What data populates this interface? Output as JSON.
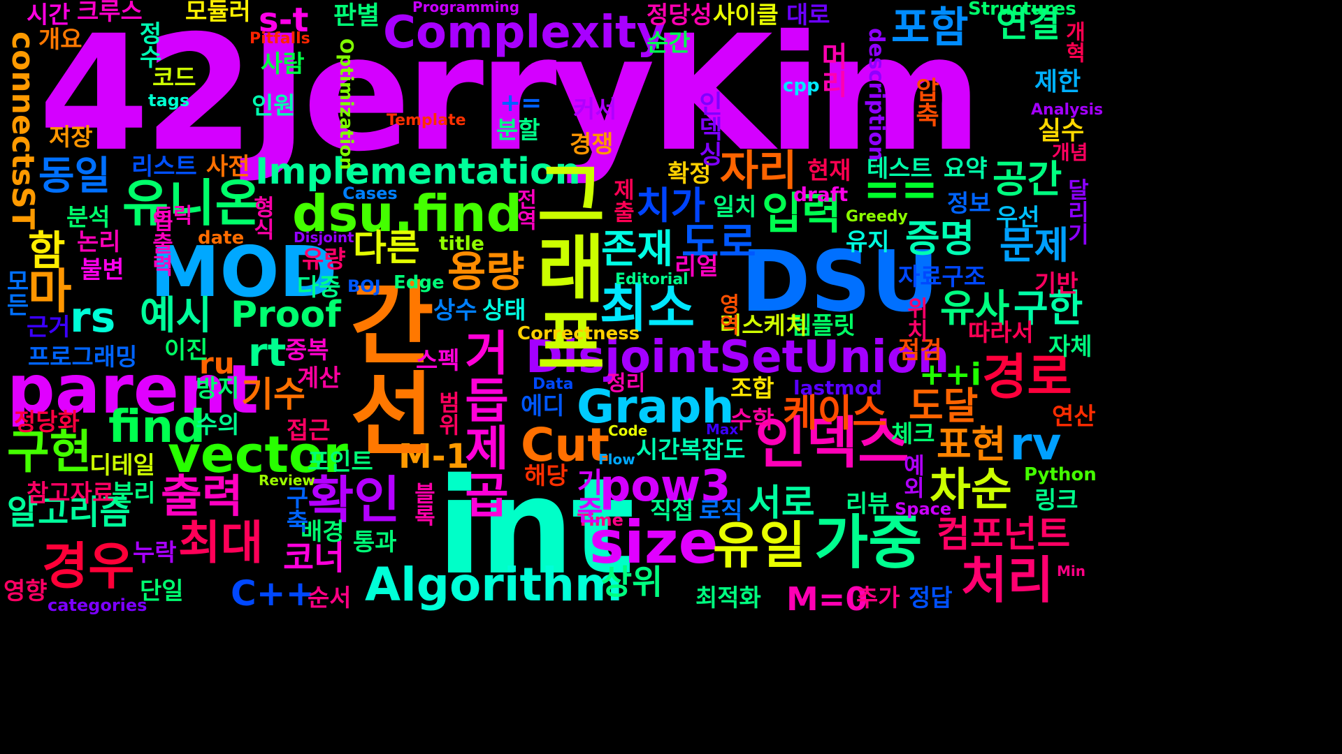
{
  "canvas": {
    "background": "#000000"
  },
  "words": [
    {
      "text": "42JerryKim",
      "color": "#d400ff"
    },
    {
      "text": "int",
      "color": "#00ffc8"
    },
    {
      "text": "DSU",
      "color": "#0070ff"
    },
    {
      "text": "MOD",
      "color": "#00a8ff"
    },
    {
      "text": "parent",
      "color": "#e000ff"
    },
    {
      "text": "Complexity",
      "color": "#a800ff"
    },
    {
      "text": "dsu.find",
      "color": "#44ff00"
    },
    {
      "text": "DisjointSetUnion",
      "color": "#a400ff"
    },
    {
      "text": "Implementation",
      "color": "#00ff9a"
    },
    {
      "text": "Algorithm",
      "color": "#00ffd8"
    },
    {
      "text": "Graph",
      "color": "#00ccff"
    },
    {
      "text": "size",
      "color": "#e000ff"
    },
    {
      "text": "vector",
      "color": "#28ff00"
    },
    {
      "text": "find",
      "color": "#00ff50"
    },
    {
      "text": "pow3",
      "color": "#d400ff"
    },
    {
      "text": "Cut",
      "color": "#ff7000"
    },
    {
      "text": "Proof",
      "color": "#00ff70"
    },
    {
      "text": "rs",
      "color": "#00ffd8"
    },
    {
      "text": "rt",
      "color": "#00ff90"
    },
    {
      "text": "rv",
      "color": "#00a0ff"
    },
    {
      "text": "C++",
      "color": "#0048ff"
    },
    {
      "text": "M-1",
      "color": "#ff9a00"
    },
    {
      "text": "M=0",
      "color": "#ff00b4"
    },
    {
      "text": "s-t",
      "color": "#ff00e8"
    },
    {
      "text": "ru",
      "color": "#ff6400"
    },
    {
      "text": "==",
      "color": "#00ff2c"
    },
    {
      "text": "+=",
      "color": "#0060ff"
    },
    {
      "text": "++i",
      "color": "#20ff00"
    },
    {
      "text": "간선",
      "color": "#ff7800"
    },
    {
      "text": "그래프",
      "color": "#ccff00"
    },
    {
      "text": "가중치",
      "color": "#ff7800"
    },
    {
      "text": "유니온",
      "color": "#00ff6a"
    },
    {
      "text": "용량",
      "color": "#ff8c00"
    },
    {
      "text": "확인",
      "color": "#b400ff"
    },
    {
      "text": "출력",
      "color": "#ff00c0"
    },
    {
      "text": "경우",
      "color": "#ff0038"
    },
    {
      "text": "구현",
      "color": "#44ff00"
    },
    {
      "text": "최소",
      "color": "#00e8ff"
    },
    {
      "text": "포함",
      "color": "#008cff"
    },
    {
      "text": "연결",
      "color": "#00ff7c"
    },
    {
      "text": "자리",
      "color": "#ff6400"
    },
    {
      "text": "입력",
      "color": "#00ff50"
    },
    {
      "text": "도로",
      "color": "#0058ff"
    },
    {
      "text": "존재",
      "color": "#00ffe4"
    },
    {
      "text": "치가",
      "color": "#0044ff"
    },
    {
      "text": "다른",
      "color": "#e4ff00"
    },
    {
      "text": "예시",
      "color": "#00ff9c"
    },
    {
      "text": "최대",
      "color": "#ff0058"
    },
    {
      "text": "유일",
      "color": "#e8ff00"
    },
    {
      "text": "가중",
      "color": "#00ff90"
    },
    {
      "text": "처리",
      "color": "#ff0070"
    },
    {
      "text": "인덱스",
      "color": "#ff00b8"
    },
    {
      "text": "유사",
      "color": "#00ff80"
    },
    {
      "text": "구한",
      "color": "#00ffa8"
    },
    {
      "text": "경로",
      "color": "#ff003c"
    },
    {
      "text": "공간",
      "color": "#00ff80"
    },
    {
      "text": "증명",
      "color": "#00ffb4"
    },
    {
      "text": "문제",
      "color": "#00a0ff"
    },
    {
      "text": "차순",
      "color": "#ccff00"
    },
    {
      "text": "표현",
      "color": "#ff8400"
    },
    {
      "text": "도달",
      "color": "#ff6400"
    },
    {
      "text": "케이스",
      "color": "#ff4c00"
    },
    {
      "text": "서로",
      "color": "#00ffa0"
    },
    {
      "text": "상위",
      "color": "#00ff80"
    },
    {
      "text": "컴포넌트",
      "color": "#ff0064"
    },
    {
      "text": "동일",
      "color": "#0070ff"
    },
    {
      "text": "알고리즘",
      "color": "#00ff9c"
    },
    {
      "text": "기수",
      "color": "#ff7000"
    },
    {
      "text": "코너",
      "color": "#ff00dc"
    },
    {
      "text": "마",
      "color": "#ff9600"
    },
    {
      "text": "함",
      "color": "#ffee00"
    },
    {
      "text": "connectsST",
      "color": "#ff9a00"
    },
    {
      "text": "거듭제곱",
      "color": "#ff00d8"
    },
    {
      "text": "테스트",
      "color": "#00ffa8"
    },
    {
      "text": "요약",
      "color": "#00ffa8"
    },
    {
      "text": "자료구조",
      "color": "#0048ff"
    },
    {
      "text": "템플릿",
      "color": "#00ff64"
    },
    {
      "text": "러스케치",
      "color": "#d0ff00"
    },
    {
      "text": "Correctness",
      "color": "#ffd000"
    },
    {
      "text": "Editorial",
      "color": "#00ff8c"
    },
    {
      "text": "Optimization",
      "color": "#80ff00"
    },
    {
      "text": "description",
      "color": "#9000ff"
    },
    {
      "text": "Programming",
      "color": "#c800ff"
    },
    {
      "text": "Structures",
      "color": "#00ff6c"
    },
    {
      "text": "Pitfalls",
      "color": "#ff2400"
    },
    {
      "text": "Template",
      "color": "#ff3000"
    },
    {
      "text": "Analysis",
      "color": "#a400ff"
    },
    {
      "text": "tags",
      "color": "#00ffd0"
    },
    {
      "text": "cpp",
      "color": "#00e8ff"
    },
    {
      "text": "Cases",
      "color": "#0080ff"
    },
    {
      "text": "draft",
      "color": "#ff00e8"
    },
    {
      "text": "Greedy",
      "color": "#8cff00"
    },
    {
      "text": "Disjoint",
      "color": "#9400ff"
    },
    {
      "text": "date",
      "color": "#ff6c00"
    },
    {
      "text": "title",
      "color": "#90ff00"
    },
    {
      "text": "BOJ",
      "color": "#0058ff"
    },
    {
      "text": "Edge",
      "color": "#00ff78"
    },
    {
      "text": "Data",
      "color": "#0048ff"
    },
    {
      "text": "lastmod",
      "color": "#5800ff"
    },
    {
      "text": "Code",
      "color": "#e8ff00"
    },
    {
      "text": "Max",
      "color": "#3c00ff"
    },
    {
      "text": "Flow",
      "color": "#00a8ff"
    },
    {
      "text": "Review",
      "color": "#9cff00"
    },
    {
      "text": "Time",
      "color": "#ff0084"
    },
    {
      "text": "Space",
      "color": "#cc00ff"
    },
    {
      "text": "Python",
      "color": "#44ff00"
    },
    {
      "text": "Min",
      "color": "#ff0084"
    },
    {
      "text": "categories",
      "color": "#7c00ff"
    },
    {
      "text": "시간",
      "color": "#ff00e0"
    },
    {
      "text": "크루스",
      "color": "#ff00c8"
    },
    {
      "text": "모듈러",
      "color": "#fff000"
    },
    {
      "text": "판별",
      "color": "#00ff78"
    },
    {
      "text": "정당성",
      "color": "#ff00b0"
    },
    {
      "text": "사이클",
      "color": "#e8ff00"
    },
    {
      "text": "대로",
      "color": "#6c00ff"
    },
    {
      "text": "개요",
      "color": "#ff7800"
    },
    {
      "text": "정수",
      "color": "#00ffb4"
    },
    {
      "text": "사람",
      "color": "#00ff44"
    },
    {
      "text": "순간",
      "color": "#00ff50"
    },
    {
      "text": "코드",
      "color": "#ccff00"
    },
    {
      "text": "인원",
      "color": "#00ffb0"
    },
    {
      "text": "제한",
      "color": "#00b0ff"
    },
    {
      "text": "실수",
      "color": "#ffd800"
    },
    {
      "text": "개념",
      "color": "#ff0060"
    },
    {
      "text": "저장",
      "color": "#ff9600"
    },
    {
      "text": "커서",
      "color": "#b000ff"
    },
    {
      "text": "분할",
      "color": "#00ff88"
    },
    {
      "text": "경쟁",
      "color": "#ff9600"
    },
    {
      "text": "리스트",
      "color": "#0050ff"
    },
    {
      "text": "사전",
      "color": "#ff7000"
    },
    {
      "text": "확정",
      "color": "#ffd000"
    },
    {
      "text": "현재",
      "color": "#ff0050"
    },
    {
      "text": "정보",
      "color": "#0064ff"
    },
    {
      "text": "우선",
      "color": "#00c0ff"
    },
    {
      "text": "분석",
      "color": "#00ff6c"
    },
    {
      "text": "트릭",
      "color": "#ff00c0"
    },
    {
      "text": "일치",
      "color": "#00ff7c"
    },
    {
      "text": "유지",
      "color": "#00ffe0"
    },
    {
      "text": "논리",
      "color": "#ff00b8"
    },
    {
      "text": "불변",
      "color": "#ff00ec"
    },
    {
      "text": "유량",
      "color": "#ff0068"
    },
    {
      "text": "리얼",
      "color": "#ff00c0"
    },
    {
      "text": "기반",
      "color": "#ff0060"
    },
    {
      "text": "다중",
      "color": "#00ff8c"
    },
    {
      "text": "상수",
      "color": "#0080ff"
    },
    {
      "text": "상태",
      "color": "#00ffe0"
    },
    {
      "text": "근거",
      "color": "#3c00ff"
    },
    {
      "text": "따라서",
      "color": "#ff0054"
    },
    {
      "text": "자체",
      "color": "#00ff80"
    },
    {
      "text": "프로그래밍",
      "color": "#0064ff"
    },
    {
      "text": "이진",
      "color": "#00ff64"
    },
    {
      "text": "중복",
      "color": "#ff00cc"
    },
    {
      "text": "점검",
      "color": "#ff4c00"
    },
    {
      "text": "계산",
      "color": "#ff00a0"
    },
    {
      "text": "스펙",
      "color": "#ff00d8"
    },
    {
      "text": "방지",
      "color": "#00ff70"
    },
    {
      "text": "정리",
      "color": "#ff00b0"
    },
    {
      "text": "조합",
      "color": "#ffe400"
    },
    {
      "text": "정당화",
      "color": "#ff0040"
    },
    {
      "text": "수의",
      "color": "#00ff90"
    },
    {
      "text": "에디",
      "color": "#0058ff"
    },
    {
      "text": "수학",
      "color": "#ff00a0"
    },
    {
      "text": "연산",
      "color": "#ff2c00"
    },
    {
      "text": "접근",
      "color": "#ff0064"
    },
    {
      "text": "체크",
      "color": "#00ff70"
    },
    {
      "text": "시간복잡도",
      "color": "#00ffb4"
    },
    {
      "text": "디테일",
      "color": "#ccff00"
    },
    {
      "text": "포인트",
      "color": "#00ff78"
    },
    {
      "text": "해당",
      "color": "#ff3000"
    },
    {
      "text": "참고자료",
      "color": "#ff0064"
    },
    {
      "text": "분리",
      "color": "#00ff80"
    },
    {
      "text": "직접",
      "color": "#00ff90"
    },
    {
      "text": "로직",
      "color": "#0070ff"
    },
    {
      "text": "리뷰",
      "color": "#00ff88"
    },
    {
      "text": "링크",
      "color": "#00ff8c"
    },
    {
      "text": "배경",
      "color": "#00ff70"
    },
    {
      "text": "통과",
      "color": "#00ff78"
    },
    {
      "text": "누락",
      "color": "#a800ff"
    },
    {
      "text": "영향",
      "color": "#ff0064"
    },
    {
      "text": "단일",
      "color": "#00ff70"
    },
    {
      "text": "순서",
      "color": "#ff0084"
    },
    {
      "text": "최적화",
      "color": "#00ff80"
    },
    {
      "text": "추가",
      "color": "#ff0084"
    },
    {
      "text": "정답",
      "color": "#0050ff"
    },
    {
      "text": "압축",
      "color": "#ff4c00"
    },
    {
      "text": "머리",
      "color": "#ff00b0"
    },
    {
      "text": "인덱싱",
      "color": "#8000ff"
    },
    {
      "text": "달리기",
      "color": "#8c00ff"
    },
    {
      "text": "개혁",
      "color": "#ff0050"
    },
    {
      "text": "형식",
      "color": "#ff00a8"
    },
    {
      "text": "입출력",
      "color": "#ff00c0"
    },
    {
      "text": "전역",
      "color": "#ff00c0"
    },
    {
      "text": "제출",
      "color": "#ff0054"
    },
    {
      "text": "위치",
      "color": "#ff0068"
    },
    {
      "text": "범위",
      "color": "#ff0060"
    },
    {
      "text": "기준",
      "color": "#d400ff"
    },
    {
      "text": "구축",
      "color": "#0064ff"
    },
    {
      "text": "블록",
      "color": "#ff00a8"
    },
    {
      "text": "영역",
      "color": "#ff5000"
    },
    {
      "text": "예외",
      "color": "#b000ff"
    },
    {
      "text": "모든",
      "color": "#0070ff"
    }
  ]
}
